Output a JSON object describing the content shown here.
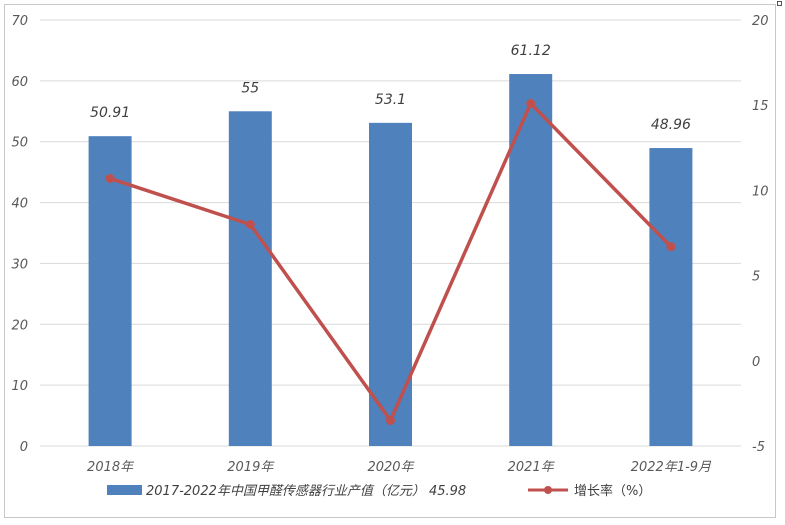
{
  "colors": {
    "bar": "#4f81bd",
    "line": "#c0504d",
    "grid": "#d9d9d9",
    "tick_text": "#595959"
  },
  "chart_data": {
    "type": "bar",
    "title": "",
    "xlabel": "",
    "ylabel": "",
    "categories": [
      "2018年",
      "2019年",
      "2020年",
      "2021年",
      "2022年1-9月"
    ],
    "series": [
      {
        "name": "2017-2022年中国甲醛传感器行业产值（亿元） 45.98",
        "type": "bar",
        "axis": "left",
        "values": [
          50.91,
          55,
          53.1,
          61.12,
          48.96
        ],
        "data_labels": [
          "50.91",
          "55",
          "53.1",
          "61.12",
          "48.96"
        ]
      },
      {
        "name": "增长率（%）",
        "type": "line",
        "axis": "right",
        "values": [
          10.7,
          8.0,
          -3.5,
          15.1,
          6.7
        ]
      }
    ],
    "y_left": {
      "ylim": [
        0,
        70
      ],
      "ticks": [
        "0",
        "10",
        "20",
        "30",
        "40",
        "50",
        "60",
        "70"
      ]
    },
    "y_right": {
      "ylim": [
        -5,
        20
      ],
      "ticks": [
        "-5",
        "0",
        "5",
        "10",
        "15",
        "20"
      ]
    },
    "grid": true,
    "legend": "bottom"
  }
}
